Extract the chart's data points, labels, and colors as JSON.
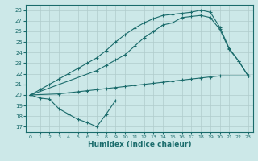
{
  "xlabel": "Humidex (Indice chaleur)",
  "bg_color": "#cce8e8",
  "line_color": "#1a6b6b",
  "grid_color": "#b8d8d8",
  "xlim": [
    -0.5,
    23.5
  ],
  "ylim": [
    16.5,
    28.5
  ],
  "yticks": [
    17,
    18,
    19,
    20,
    21,
    22,
    23,
    24,
    25,
    26,
    27,
    28
  ],
  "xticks": [
    0,
    1,
    2,
    3,
    4,
    5,
    6,
    7,
    8,
    9,
    10,
    11,
    12,
    13,
    14,
    15,
    16,
    17,
    18,
    19,
    20,
    21,
    22,
    23
  ],
  "series1_x": [
    0,
    1,
    2,
    3,
    4,
    5,
    6,
    7,
    8,
    9,
    10,
    11,
    12,
    13,
    14,
    15,
    16,
    17,
    18,
    19,
    20,
    21,
    22,
    23
  ],
  "series1_y": [
    20.0,
    20.5,
    21.0,
    21.5,
    22.0,
    22.5,
    23.0,
    23.5,
    24.2,
    25.0,
    25.7,
    26.3,
    26.8,
    27.2,
    27.5,
    27.6,
    27.7,
    27.8,
    28.0,
    27.8,
    26.4,
    24.4,
    23.2,
    21.8
  ],
  "series2_x": [
    0,
    7,
    8,
    9,
    10,
    11,
    12,
    13,
    14,
    15,
    16,
    17,
    18,
    19,
    20,
    21,
    22,
    23
  ],
  "series2_y": [
    20.0,
    22.3,
    22.8,
    23.3,
    23.8,
    24.6,
    25.4,
    26.0,
    26.6,
    26.8,
    27.3,
    27.4,
    27.5,
    27.3,
    26.2,
    24.3,
    23.2,
    21.8
  ],
  "series3_x": [
    0,
    3,
    4,
    5,
    6,
    7,
    8,
    9,
    10,
    11,
    12,
    13,
    14,
    15,
    16,
    17,
    18,
    19,
    20,
    23
  ],
  "series3_y": [
    20.0,
    20.1,
    20.2,
    20.3,
    20.4,
    20.5,
    20.6,
    20.7,
    20.8,
    20.9,
    21.0,
    21.1,
    21.2,
    21.3,
    21.4,
    21.5,
    21.6,
    21.7,
    21.8,
    21.8
  ],
  "series4_x": [
    0,
    1,
    2,
    3,
    4,
    5,
    6,
    7,
    8,
    9
  ],
  "series4_y": [
    20.0,
    19.7,
    19.6,
    18.7,
    18.2,
    17.7,
    17.4,
    17.0,
    18.2,
    19.5
  ]
}
